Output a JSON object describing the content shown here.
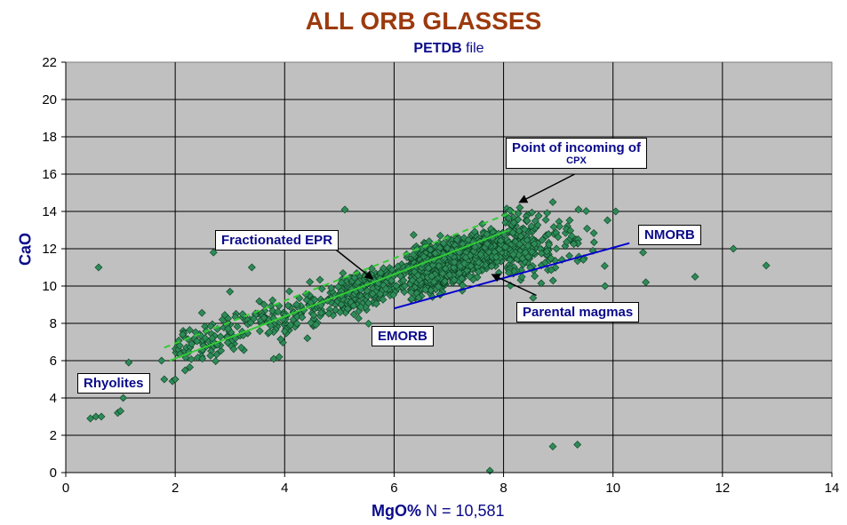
{
  "chart_data": {
    "type": "scatter",
    "title": "ALL ORB GLASSES",
    "subtitle_bold": "PETDB",
    "subtitle_rest": " file",
    "xlabel_bold": "MgO%",
    "xlabel_rest": "  N = 10,581",
    "ylabel": "CaO",
    "xlim": [
      0,
      14
    ],
    "ylim": [
      0,
      22
    ],
    "xticks": [
      "0",
      "2",
      "4",
      "6",
      "8",
      "10",
      "12",
      "14"
    ],
    "yticks": [
      "0",
      "2",
      "4",
      "6",
      "8",
      "10",
      "12",
      "14",
      "16",
      "18",
      "20",
      "22"
    ],
    "grid": true,
    "point_color": "#2e8b57",
    "line_color_green": "#33cc33",
    "line_color_blue": "#0000cc",
    "outliers": [
      [
        0.45,
        2.9
      ],
      [
        0.55,
        3.0
      ],
      [
        0.65,
        3.0
      ],
      [
        0.95,
        3.2
      ],
      [
        1.0,
        3.3
      ],
      [
        1.05,
        4.0
      ],
      [
        1.15,
        5.9
      ],
      [
        0.6,
        11.0
      ],
      [
        2.7,
        11.8
      ],
      [
        3.4,
        11.0
      ],
      [
        5.1,
        14.1
      ],
      [
        7.75,
        0.1
      ],
      [
        8.9,
        1.4
      ],
      [
        9.35,
        1.5
      ],
      [
        10.55,
        11.8
      ],
      [
        10.6,
        10.2
      ],
      [
        11.5,
        10.5
      ],
      [
        12.2,
        12.0
      ],
      [
        12.8,
        11.1
      ],
      [
        10.05,
        14.0
      ],
      [
        8.9,
        14.5
      ],
      [
        1.8,
        5.0
      ],
      [
        1.95,
        4.9
      ],
      [
        2.0,
        5.0
      ],
      [
        1.75,
        6.0
      ],
      [
        2.3,
        6.9
      ],
      [
        3.0,
        9.7
      ],
      [
        3.1,
        7.2
      ],
      [
        3.8,
        6.1
      ],
      [
        3.9,
        6.2
      ]
    ],
    "lines": [
      {
        "name": "green-solid",
        "x": [
          1.9,
          8.1
        ],
        "y": [
          6.0,
          13.0
        ],
        "style": "solid"
      },
      {
        "name": "green-dashed",
        "x": [
          1.8,
          8.2
        ],
        "y": [
          6.7,
          14.0
        ],
        "style": "dashed"
      },
      {
        "name": "blue",
        "x": [
          6.0,
          10.3
        ],
        "y": [
          8.8,
          12.3
        ],
        "style": "solid"
      }
    ],
    "annotations": [
      {
        "key": "point_incoming",
        "line1": "Point of incoming of",
        "line2": "CPX",
        "arrow_from": [
          9.3,
          16.0
        ],
        "arrow_to": [
          8.3,
          14.5
        ]
      },
      {
        "key": "fractionated",
        "line1": "Fractionated EPR",
        "arrow_from": [
          4.7,
          12.5
        ],
        "arrow_to": [
          5.6,
          10.4
        ]
      },
      {
        "key": "nmorb",
        "line1": "NMORB",
        "arrow_from": null,
        "arrow_to": null
      },
      {
        "key": "parental",
        "line1": "Parental magmas",
        "arrow_from": [
          8.6,
          9.5
        ],
        "arrow_to": [
          7.8,
          10.6
        ]
      },
      {
        "key": "emorb",
        "line1": "EMORB",
        "arrow_from": null,
        "arrow_to": null
      },
      {
        "key": "rhyolites",
        "line1": "Rhyolites",
        "arrow_from": null,
        "arrow_to": null
      }
    ]
  }
}
